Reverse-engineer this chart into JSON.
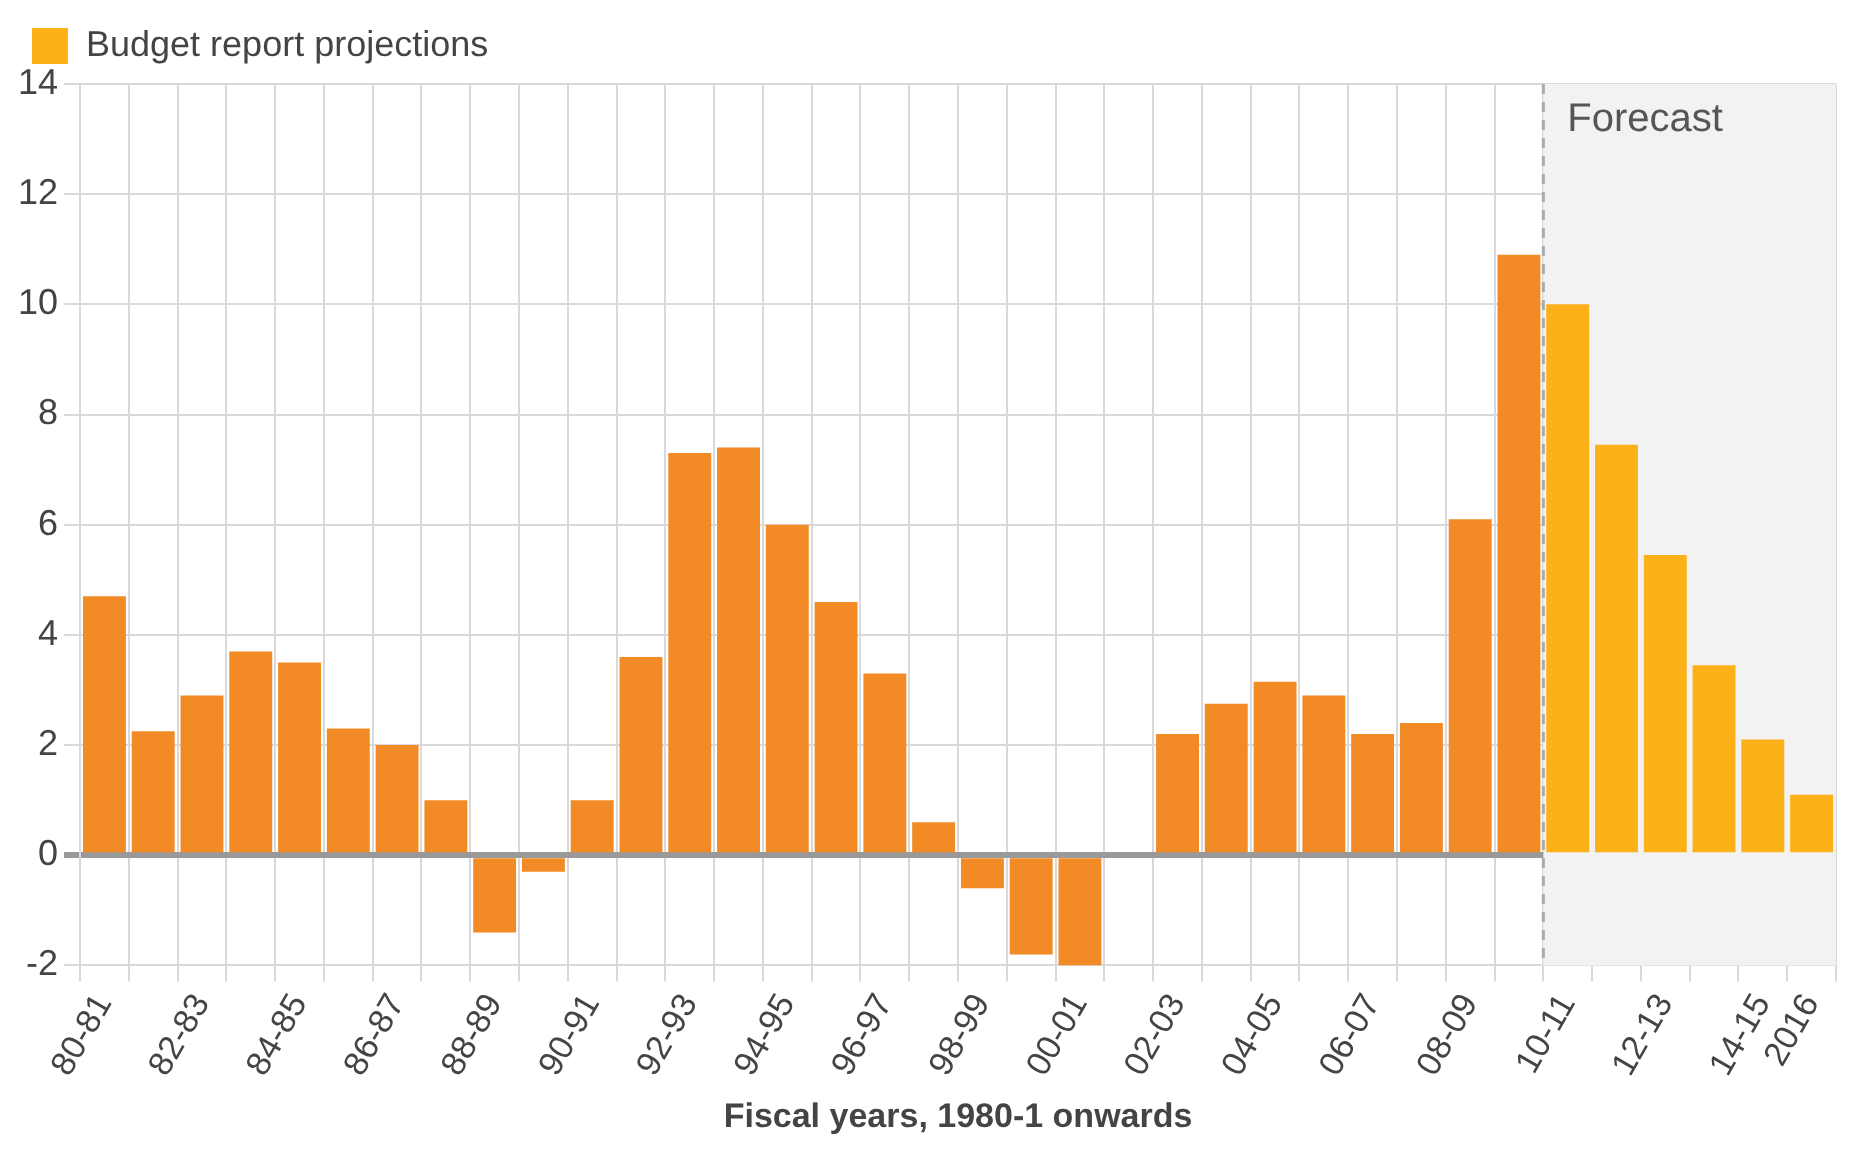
{
  "chart_data": {
    "type": "bar",
    "xlabel": "Fiscal years, 1980-1 onwards",
    "categories": [
      "80-81",
      null,
      "82-83",
      null,
      "84-85",
      null,
      "86-87",
      null,
      "88-89",
      null,
      "90-91",
      null,
      "92-93",
      null,
      "94-95",
      null,
      "96-97",
      null,
      "98-99",
      null,
      "00-01",
      null,
      "02-03",
      null,
      "04-05",
      null,
      "06-07",
      null,
      "08-09",
      null,
      "10-11",
      null,
      "12-13",
      null,
      "14-15",
      "2016"
    ],
    "series": [
      {
        "color": "#f28b26",
        "values": [
          4.7,
          2.25,
          2.9,
          3.7,
          3.5,
          2.3,
          2.0,
          1.0,
          -1.4,
          -0.3,
          1.0,
          3.6,
          7.3,
          7.4,
          6.0,
          4.6,
          3.3,
          0.6,
          -0.6,
          -1.8,
          -2.0,
          0,
          2.2,
          2.75,
          3.15,
          2.9,
          2.2,
          2.4,
          6.1,
          10.9,
          null,
          null,
          null,
          null,
          null,
          null
        ]
      },
      {
        "name": "Budget report projections",
        "color": "#fbb117",
        "values": [
          null,
          null,
          null,
          null,
          null,
          null,
          null,
          null,
          null,
          null,
          null,
          null,
          null,
          null,
          null,
          null,
          null,
          null,
          null,
          null,
          null,
          null,
          null,
          null,
          null,
          null,
          null,
          null,
          null,
          null,
          10.0,
          7.45,
          5.45,
          3.45,
          2.1,
          1.1
        ]
      }
    ],
    "ylim": [
      -2,
      14
    ],
    "yticks": [
      -2,
      0,
      2,
      4,
      6,
      8,
      10,
      12,
      14
    ],
    "grid": true,
    "legend": "top left",
    "ref_lines": [
      {
        "axis": "x",
        "value": "10-11",
        "color": "#aaaaaa",
        "line_style": "dashed"
      }
    ],
    "bands": [
      {
        "axis": "x",
        "from": "10-11",
        "to": "2016",
        "label": "Forecast",
        "color": "#f2f2f2"
      }
    ]
  }
}
